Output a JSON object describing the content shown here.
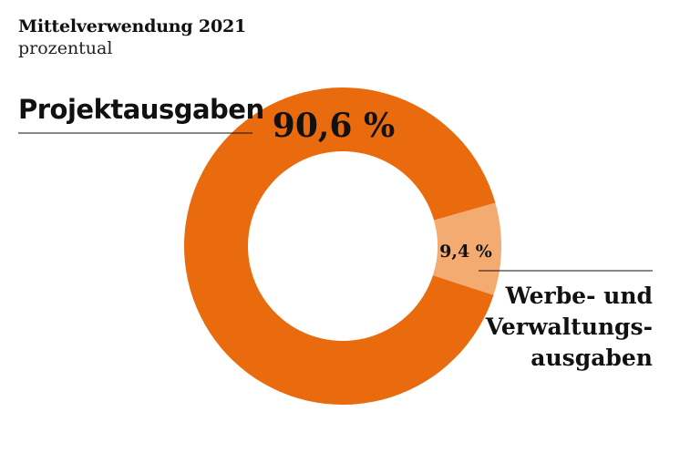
{
  "chart_data": {
    "type": "pie",
    "title": "Mittelverwendung 2021",
    "subtitle": "prozentual",
    "slices": [
      {
        "label": "Projektausgaben",
        "value": 90.6,
        "value_label": "90,6 %",
        "color": "#EA6A0E"
      },
      {
        "label_lines": [
          "Werbe- und",
          "Verwaltungs-",
          "ausgaben"
        ],
        "value": 9.4,
        "value_label": "9,4 %",
        "color": "#F4AB72"
      }
    ]
  }
}
